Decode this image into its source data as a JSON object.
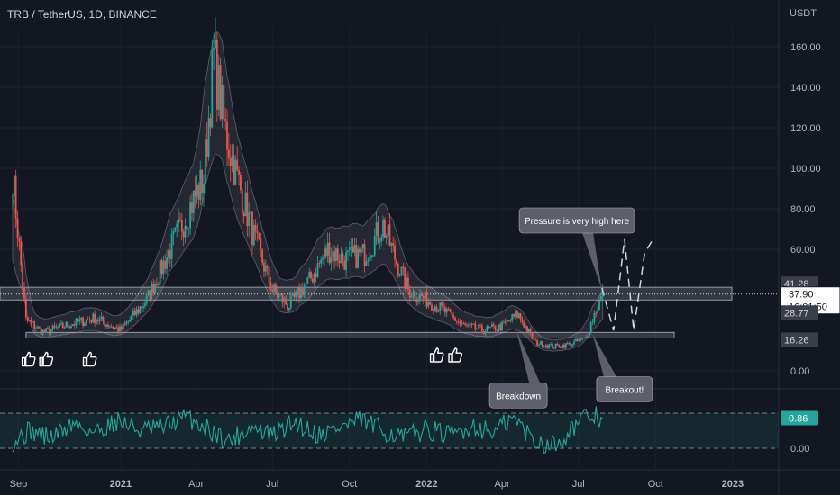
{
  "header": {
    "symbol_line": "TRB / TetherUS, 1D, BINANCE",
    "currency": "USDT"
  },
  "chart_data": {
    "type": "candlestick",
    "title": "TRB / TetherUS, 1D, BINANCE",
    "y_unit": "USDT",
    "ylim": [
      0,
      170
    ],
    "y_ticks": [
      "160.00",
      "140.00",
      "120.00",
      "100.00",
      "80.00",
      "60.00",
      "0.00"
    ],
    "x_ticks": [
      "Sep",
      "2021",
      "Apr",
      "Jul",
      "Oct",
      "2022",
      "Apr",
      "Jul",
      "Oct",
      "2023"
    ],
    "price_series": {
      "name": "TRB/USDT close (approx.)",
      "x": [
        "2020-08-25",
        "2020-09-10",
        "2020-10-01",
        "2020-11-01",
        "2020-12-01",
        "2021-01-01",
        "2021-02-01",
        "2021-03-01",
        "2021-04-10",
        "2021-04-22",
        "2021-05-05",
        "2021-05-20",
        "2021-06-10",
        "2021-07-01",
        "2021-07-20",
        "2021-08-15",
        "2021-09-05",
        "2021-09-25",
        "2021-10-20",
        "2021-11-10",
        "2021-11-25",
        "2021-12-10",
        "2022-01-01",
        "2022-01-20",
        "2022-02-15",
        "2022-03-10",
        "2022-04-01",
        "2022-04-20",
        "2022-05-10",
        "2022-06-01",
        "2022-06-20",
        "2022-07-10",
        "2022-07-20",
        "2022-07-30"
      ],
      "y": [
        97,
        25,
        19,
        23,
        26,
        20,
        35,
        60,
        95,
        155,
        120,
        95,
        65,
        40,
        32,
        45,
        60,
        55,
        58,
        72,
        55,
        40,
        35,
        30,
        22,
        20,
        22,
        28,
        14,
        12,
        13,
        16,
        28,
        38
      ]
    },
    "bands": {
      "name": "envelope bands (approx.)",
      "upper_offset_pct": 25,
      "lower_offset_pct": -20
    },
    "zones": [
      {
        "name": "resistance",
        "low": 35,
        "high": 41.28
      },
      {
        "name": "support",
        "low": 16.26,
        "high": 19
      }
    ],
    "price_labels": [
      {
        "value": "41.28",
        "style": "neutral"
      },
      {
        "value": "37.90",
        "style": "current",
        "sub": "16:01:50"
      },
      {
        "value": "28.77",
        "style": "neutral"
      },
      {
        "value": "16.26",
        "style": "neutral"
      }
    ],
    "annotations": [
      {
        "text": "Pressure is very high here",
        "x": "2022-07-10",
        "y": 68
      },
      {
        "text": "Breakdown",
        "x": "2022-04-01",
        "y": -5
      },
      {
        "text": "Breakout!",
        "x": "2022-07-27",
        "y": -2
      }
    ],
    "thumbs_up_markers": [
      {
        "x": "2020-09-13",
        "y": 6
      },
      {
        "x": "2020-10-04",
        "y": 6
      },
      {
        "x": "2020-11-25",
        "y": 6
      },
      {
        "x": "2022-01-13",
        "y": 8
      },
      {
        "x": "2022-02-04",
        "y": 8
      }
    ],
    "projection": {
      "name": "projected path (dashed)",
      "x": [
        "2022-07-29",
        "2022-08-12",
        "2022-08-25",
        "2022-09-05",
        "2022-09-18",
        "2022-09-28"
      ],
      "y": [
        41,
        20,
        65,
        20,
        58,
        65
      ]
    },
    "oscillator": {
      "y_ticks": [
        "0.00"
      ],
      "current_value": "0.86",
      "ylim": [
        0,
        1
      ],
      "band": [
        0,
        1
      ],
      "x": [
        "2020-08-25",
        "2020-09-15",
        "2020-10-10",
        "2020-11-05",
        "2020-12-01",
        "2020-12-28",
        "2021-01-25",
        "2021-02-20",
        "2021-03-20",
        "2021-04-15",
        "2021-05-10",
        "2021-06-05",
        "2021-07-01",
        "2021-07-28",
        "2021-08-25",
        "2021-09-20",
        "2021-10-15",
        "2021-11-10",
        "2021-12-05",
        "2022-01-01",
        "2022-01-28",
        "2022-02-25",
        "2022-03-20",
        "2022-04-15",
        "2022-05-10",
        "2022-06-05",
        "2022-06-28",
        "2022-07-18",
        "2022-07-30"
      ],
      "y": [
        0.2,
        0.5,
        0.3,
        0.7,
        0.45,
        0.8,
        0.5,
        0.6,
        0.9,
        0.55,
        0.2,
        0.6,
        0.35,
        0.75,
        0.4,
        0.6,
        0.8,
        0.5,
        0.3,
        0.55,
        0.35,
        0.65,
        0.45,
        0.85,
        0.2,
        0.1,
        0.7,
        0.95,
        0.86
      ]
    }
  }
}
